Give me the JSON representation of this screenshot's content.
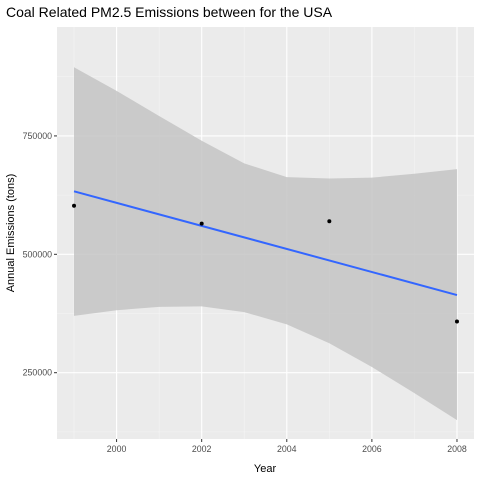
{
  "chart_data": {
    "type": "scatter",
    "title": "Coal Related PM2.5 Emissions between for the USA",
    "xlabel": "Year",
    "ylabel": "Annual Emissions (tons)",
    "xlim": [
      1998.6,
      2008.4
    ],
    "ylim": [
      110000,
      980000
    ],
    "x_ticks": [
      2000,
      2002,
      2004,
      2006,
      2008
    ],
    "x_tick_labels": [
      "2000",
      "2002",
      "2004",
      "2006",
      "2008"
    ],
    "y_ticks": [
      250000,
      500000,
      750000
    ],
    "y_tick_labels": [
      "250000",
      "500000",
      "750000"
    ],
    "grid": true,
    "legend": "none",
    "points": [
      {
        "x": 1999,
        "y": 602600
      },
      {
        "x": 2002,
        "y": 564900
      },
      {
        "x": 2005,
        "y": 569700
      },
      {
        "x": 2008,
        "y": 358100
      }
    ],
    "fit": {
      "method": "linear",
      "start": {
        "x": 1999,
        "y": 633000
      },
      "end": {
        "x": 2008,
        "y": 414000
      },
      "confidence_band": [
        {
          "x": 1999,
          "lower": 370000,
          "upper": 895000
        },
        {
          "x": 2000,
          "lower": 382000,
          "upper": 845000
        },
        {
          "x": 2001,
          "lower": 389000,
          "upper": 792000
        },
        {
          "x": 2002,
          "lower": 390000,
          "upper": 740000
        },
        {
          "x": 2003,
          "lower": 378000,
          "upper": 692000
        },
        {
          "x": 2004,
          "lower": 352000,
          "upper": 663000
        },
        {
          "x": 2005,
          "lower": 312000,
          "upper": 660000
        },
        {
          "x": 2006,
          "lower": 262000,
          "upper": 662000
        },
        {
          "x": 2007,
          "lower": 207000,
          "upper": 670000
        },
        {
          "x": 2008,
          "lower": 150000,
          "upper": 680000
        }
      ]
    },
    "colors": {
      "panel_background": "#ebebeb",
      "grid_major": "#ffffff",
      "grid_minor": "#f5f5f5",
      "fit_line": "#3366ff",
      "band": "#c4c4c4",
      "point": "#000000",
      "tick": "#333333"
    }
  }
}
